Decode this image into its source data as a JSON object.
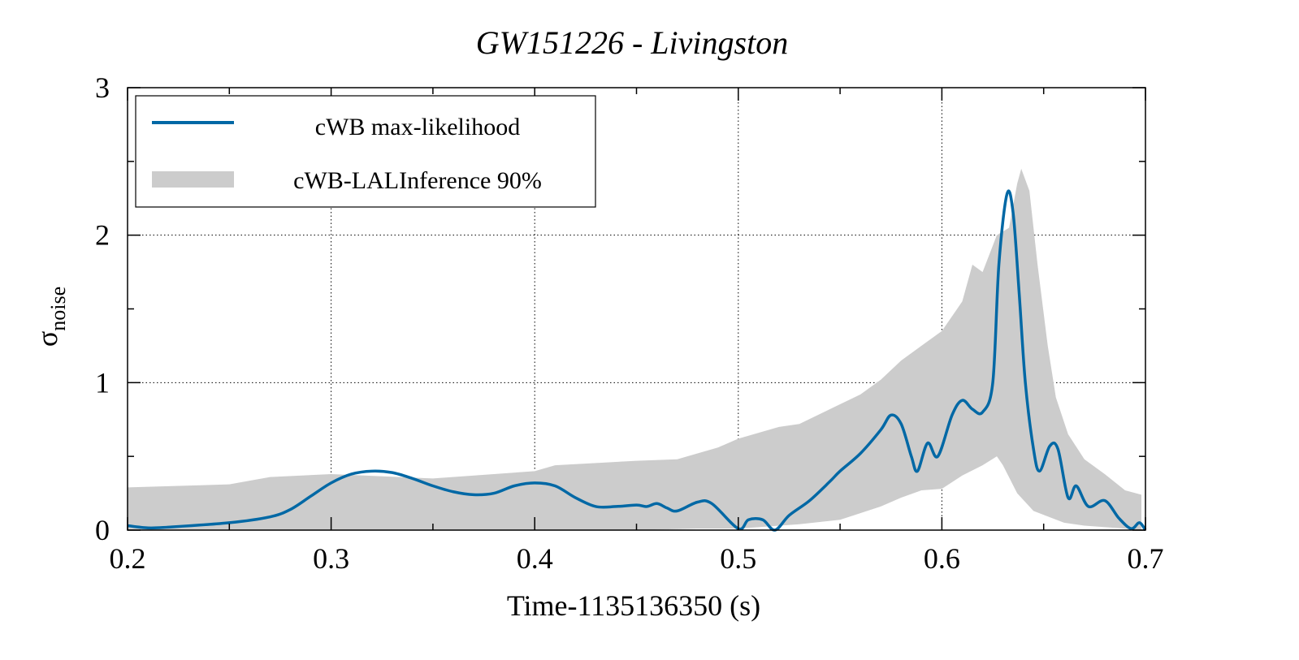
{
  "chart_data": {
    "type": "line",
    "title": "GW151226 - Livingston",
    "xlabel": "Time-1135136350 (s)",
    "ylabel": "σ",
    "ylabel_sub": "noise",
    "xlim": [
      0.2,
      0.7
    ],
    "ylim": [
      0,
      3
    ],
    "xticks": [
      "0.2",
      "0.3",
      "0.4",
      "0.5",
      "0.6",
      "0.7"
    ],
    "xtick_values": [
      0.2,
      0.3,
      0.4,
      0.5,
      0.6,
      0.7
    ],
    "yticks": [
      "0",
      "1",
      "2",
      "3"
    ],
    "ytick_values": [
      0,
      1,
      2,
      3
    ],
    "grid": true,
    "legend_position": "top-left",
    "colors": {
      "line": "#0068a5",
      "band": "#cccccc"
    },
    "series": [
      {
        "name": "cWB max-likelihood",
        "type": "line",
        "x": [
          0.2,
          0.21,
          0.22,
          0.25,
          0.27,
          0.28,
          0.29,
          0.3,
          0.31,
          0.32,
          0.33,
          0.34,
          0.35,
          0.36,
          0.37,
          0.38,
          0.39,
          0.4,
          0.41,
          0.42,
          0.43,
          0.44,
          0.45,
          0.455,
          0.46,
          0.465,
          0.47,
          0.48,
          0.487,
          0.5,
          0.505,
          0.512,
          0.518,
          0.525,
          0.535,
          0.545,
          0.55,
          0.56,
          0.57,
          0.575,
          0.58,
          0.585,
          0.588,
          0.593,
          0.598,
          0.605,
          0.61,
          0.615,
          0.62,
          0.625,
          0.628,
          0.632,
          0.635,
          0.638,
          0.641,
          0.645,
          0.648,
          0.653,
          0.657,
          0.662,
          0.666,
          0.672,
          0.68,
          0.687,
          0.693,
          0.697,
          0.7
        ],
        "y": [
          0.03,
          0.015,
          0.02,
          0.05,
          0.09,
          0.14,
          0.23,
          0.32,
          0.38,
          0.4,
          0.39,
          0.35,
          0.3,
          0.26,
          0.24,
          0.25,
          0.3,
          0.32,
          0.3,
          0.22,
          0.16,
          0.16,
          0.17,
          0.16,
          0.18,
          0.15,
          0.13,
          0.19,
          0.18,
          0.01,
          0.07,
          0.07,
          0.0,
          0.1,
          0.2,
          0.33,
          0.4,
          0.52,
          0.68,
          0.78,
          0.72,
          0.5,
          0.4,
          0.59,
          0.5,
          0.78,
          0.88,
          0.82,
          0.8,
          1.0,
          1.8,
          2.28,
          2.15,
          1.6,
          1.0,
          0.55,
          0.4,
          0.57,
          0.55,
          0.22,
          0.3,
          0.16,
          0.2,
          0.08,
          0.01,
          0.05,
          0.0
        ]
      },
      {
        "name": "cWB-LALInference 90%",
        "type": "band",
        "upper": {
          "x": [
            0.2,
            0.25,
            0.27,
            0.3,
            0.35,
            0.4,
            0.41,
            0.45,
            0.47,
            0.49,
            0.5,
            0.52,
            0.53,
            0.545,
            0.56,
            0.57,
            0.58,
            0.59,
            0.6,
            0.61,
            0.615,
            0.62,
            0.627,
            0.633,
            0.637,
            0.639,
            0.643,
            0.647,
            0.652,
            0.656,
            0.662,
            0.67,
            0.68,
            0.69,
            0.698
          ],
          "y": [
            0.29,
            0.31,
            0.36,
            0.38,
            0.35,
            0.4,
            0.44,
            0.47,
            0.48,
            0.56,
            0.62,
            0.7,
            0.72,
            0.82,
            0.92,
            1.02,
            1.15,
            1.25,
            1.35,
            1.55,
            1.8,
            1.75,
            2.0,
            2.05,
            2.35,
            2.45,
            2.3,
            1.8,
            1.25,
            0.9,
            0.65,
            0.48,
            0.38,
            0.27,
            0.24
          ]
        },
        "lower": {
          "x": [
            0.2,
            0.45,
            0.48,
            0.5,
            0.51,
            0.53,
            0.55,
            0.57,
            0.58,
            0.59,
            0.6,
            0.61,
            0.62,
            0.627,
            0.63,
            0.637,
            0.645,
            0.66,
            0.67,
            0.69,
            0.698
          ],
          "y": [
            0,
            0,
            0.01,
            0.01,
            0.02,
            0.04,
            0.07,
            0.16,
            0.22,
            0.27,
            0.28,
            0.37,
            0.44,
            0.5,
            0.44,
            0.25,
            0.13,
            0.05,
            0.03,
            0.01,
            0
          ]
        }
      }
    ]
  }
}
